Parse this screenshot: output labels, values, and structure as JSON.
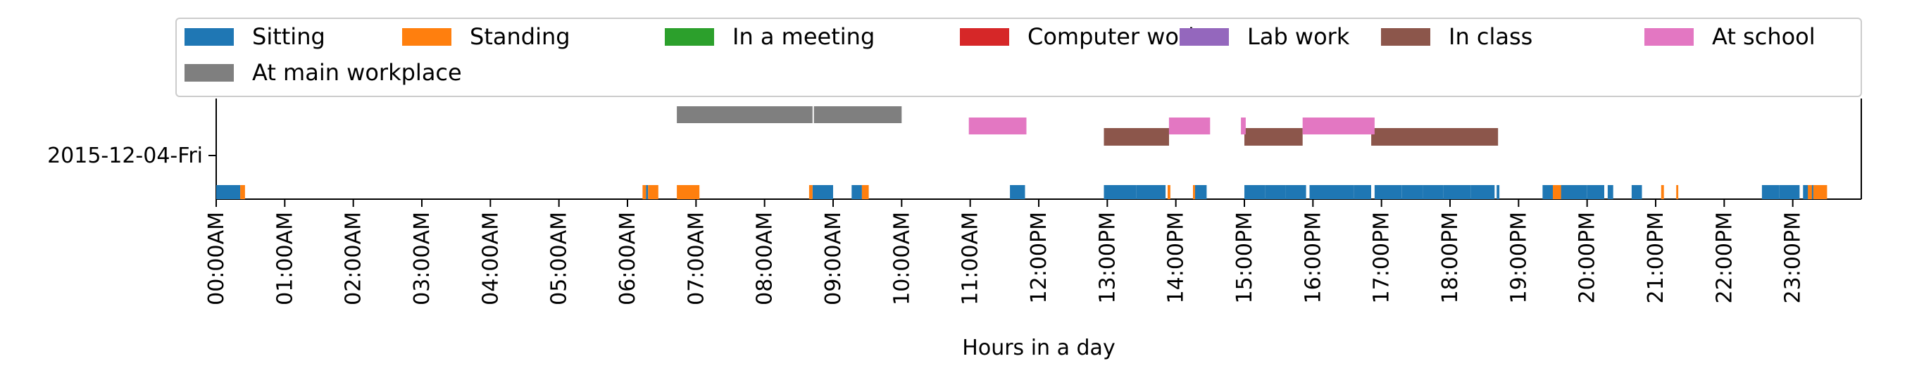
{
  "chart_data": {
    "type": "timeline",
    "xlabel": "Hours in a day",
    "xlim": [
      0,
      24
    ],
    "x_unit": "hour",
    "row_label": "2015-12-04-Fri",
    "x_ticks": [
      {
        "x": 0,
        "label": "00:00AM"
      },
      {
        "x": 1,
        "label": "01:00AM"
      },
      {
        "x": 2,
        "label": "02:00AM"
      },
      {
        "x": 3,
        "label": "03:00AM"
      },
      {
        "x": 4,
        "label": "04:00AM"
      },
      {
        "x": 5,
        "label": "05:00AM"
      },
      {
        "x": 6,
        "label": "06:00AM"
      },
      {
        "x": 7,
        "label": "07:00AM"
      },
      {
        "x": 8,
        "label": "08:00AM"
      },
      {
        "x": 9,
        "label": "09:00AM"
      },
      {
        "x": 10,
        "label": "10:00AM"
      },
      {
        "x": 11,
        "label": "11:00AM"
      },
      {
        "x": 12,
        "label": "12:00PM"
      },
      {
        "x": 13,
        "label": "13:00PM"
      },
      {
        "x": 14,
        "label": "14:00PM"
      },
      {
        "x": 15,
        "label": "15:00PM"
      },
      {
        "x": 16,
        "label": "16:00PM"
      },
      {
        "x": 17,
        "label": "17:00PM"
      },
      {
        "x": 18,
        "label": "18:00PM"
      },
      {
        "x": 19,
        "label": "19:00PM"
      },
      {
        "x": 20,
        "label": "20:00PM"
      },
      {
        "x": 21,
        "label": "21:00PM"
      },
      {
        "x": 22,
        "label": "22:00PM"
      },
      {
        "x": 23,
        "label": "23:00PM"
      }
    ],
    "legend_position": "top",
    "series": [
      {
        "name": "Sitting",
        "color": "#1f77b4",
        "lane": "bottom",
        "intervals": [
          [
            0.0,
            0.35
          ],
          [
            6.27,
            6.3
          ],
          [
            8.7,
            9.0
          ],
          [
            9.27,
            9.42
          ],
          [
            11.58,
            11.8
          ],
          [
            12.95,
            13.42
          ],
          [
            13.42,
            13.85
          ],
          [
            14.28,
            14.45
          ],
          [
            15.0,
            15.3
          ],
          [
            15.3,
            15.6
          ],
          [
            15.6,
            15.9
          ],
          [
            15.95,
            16.3
          ],
          [
            16.3,
            16.6
          ],
          [
            16.6,
            16.85
          ],
          [
            16.9,
            17.3
          ],
          [
            17.3,
            17.6
          ],
          [
            17.6,
            17.9
          ],
          [
            17.9,
            18.3
          ],
          [
            18.3,
            18.65
          ],
          [
            18.68,
            18.72
          ],
          [
            19.35,
            19.5
          ],
          [
            19.6,
            20.0
          ],
          [
            20.0,
            20.25
          ],
          [
            20.3,
            20.38
          ],
          [
            20.65,
            20.8
          ],
          [
            22.55,
            22.8
          ],
          [
            22.8,
            23.1
          ],
          [
            23.15,
            23.3
          ]
        ]
      },
      {
        "name": "Standing",
        "color": "#ff7f0e",
        "lane": "bottom",
        "intervals": [
          [
            0.35,
            0.42
          ],
          [
            6.22,
            6.27
          ],
          [
            6.3,
            6.45
          ],
          [
            6.72,
            7.05
          ],
          [
            8.65,
            8.7
          ],
          [
            9.42,
            9.52
          ],
          [
            13.88,
            13.92
          ],
          [
            14.25,
            14.28
          ],
          [
            19.5,
            19.62
          ],
          [
            21.08,
            21.12
          ],
          [
            21.3,
            21.33
          ],
          [
            23.22,
            23.28
          ],
          [
            23.3,
            23.5
          ]
        ]
      },
      {
        "name": "In a meeting",
        "color": "#2ca02c",
        "lane": "middle",
        "intervals": []
      },
      {
        "name": "Computer work",
        "color": "#d62728",
        "lane": "middle",
        "intervals": []
      },
      {
        "name": "Lab work",
        "color": "#9467bd",
        "lane": "middle",
        "intervals": []
      },
      {
        "name": "In class",
        "color": "#8c564b",
        "lane": "middle",
        "intervals": [
          [
            12.95,
            13.9
          ],
          [
            15.0,
            15.85
          ],
          [
            16.85,
            18.7
          ]
        ]
      },
      {
        "name": "At school",
        "color": "#e377c2",
        "lane": "upper",
        "intervals": [
          [
            10.98,
            11.82
          ],
          [
            13.9,
            14.5
          ],
          [
            14.95,
            15.02
          ],
          [
            15.85,
            16.9
          ]
        ]
      },
      {
        "name": "At main workplace",
        "color": "#7f7f7f",
        "lane": "top",
        "intervals": [
          [
            6.72,
            8.7
          ],
          [
            8.72,
            10.0
          ]
        ]
      }
    ]
  }
}
